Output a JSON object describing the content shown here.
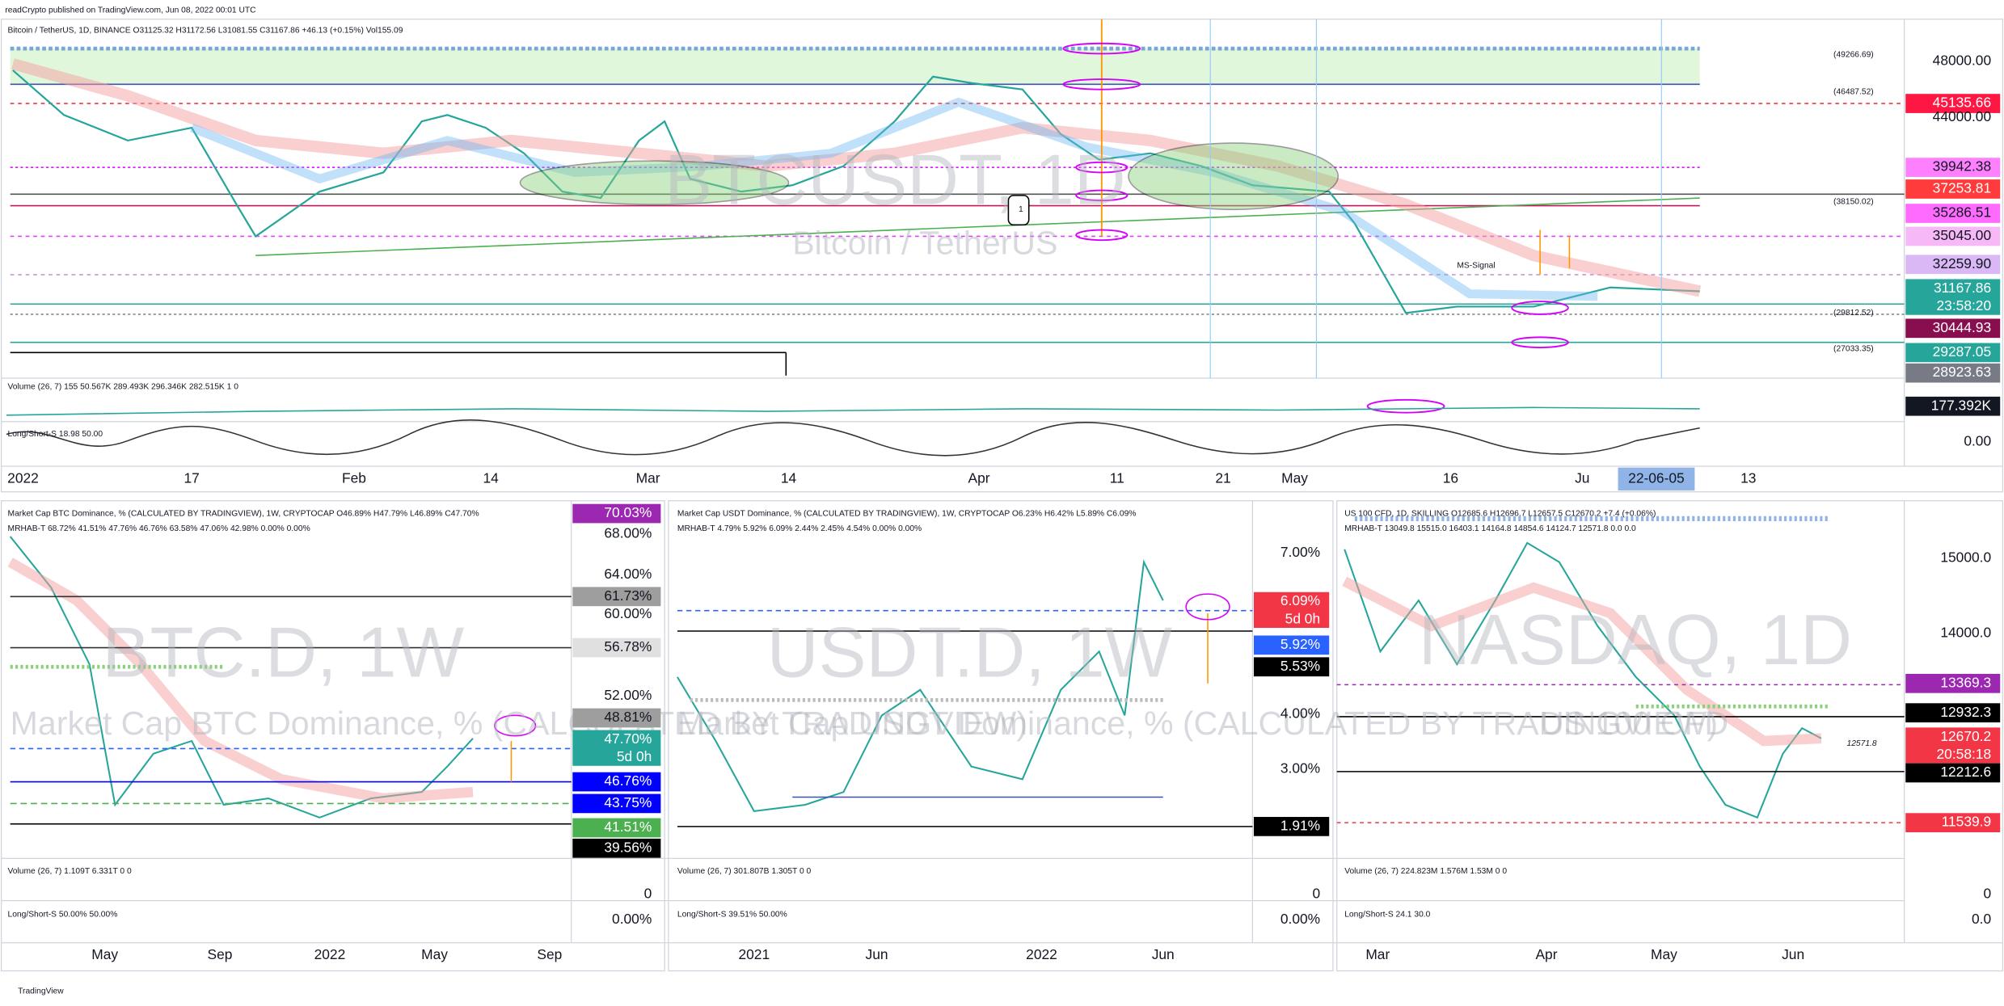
{
  "header": "readCrypto published on TradingView.com, Jun 08, 2022 00:01 UTC",
  "footer": "TradingView",
  "panels": [
    {
      "title": "Bitcoin / TetherUS, 1D, BINANCE O31125.32 H31172.56 L31081.55 C31167.86 +46.13 (+0.15%) Vol155.09",
      "legend": [
        "Volume (26, 7) 155 50.567K 289.493K 296.346K 282.515K 1 0",
        "Long/Short-S 18.98 50.00"
      ],
      "watermark": "BTCUSDT, 1D",
      "watermark_sub": "Bitcoin / TetherUS",
      "price_labels": [
        {
          "text": "48000.00"
        },
        {
          "text": "45135.66",
          "color": "#ff1744"
        },
        {
          "text": "44000.00"
        },
        {
          "text": "39942.38",
          "color": "#ff80ff"
        },
        {
          "text": "37253.81",
          "color": "#ff3b3b"
        },
        {
          "text": "35286.51",
          "color": "#ff6bff"
        },
        {
          "text": "35045.00",
          "color": "#f6b8f6"
        },
        {
          "text": "32259.90",
          "color": "#d9b8f5"
        },
        {
          "text": "31167.86",
          "sub": "23:58:20",
          "color": "#26a69a"
        },
        {
          "text": "30444.93",
          "color": "#880e4f"
        },
        {
          "text": "29287.05",
          "color": "#26a69a"
        },
        {
          "text": "28923.63",
          "color": "#787b86"
        },
        {
          "text": "177.392K",
          "color": "#131722"
        },
        {
          "text": "0.00"
        }
      ],
      "time_labels": [
        {
          "text": "2022"
        },
        {
          "text": "17"
        },
        {
          "text": "Feb"
        },
        {
          "text": "14"
        },
        {
          "text": "Mar"
        },
        {
          "text": "14"
        },
        {
          "text": "Apr"
        },
        {
          "text": "11"
        },
        {
          "text": "21"
        },
        {
          "text": "May"
        },
        {
          "text": "16"
        },
        {
          "text": "Ju"
        },
        {
          "text": "22-06-05",
          "color": "#90b4e8"
        },
        {
          "text": "13"
        }
      ],
      "annotations": [
        "MS-Signal",
        "(49266.69)",
        "(46487.52)",
        "(38150.02)",
        "(29812.52)",
        "(27033.35)",
        "1"
      ]
    },
    {
      "title": "Market Cap BTC Dominance, % (CALCULATED BY TRADINGVIEW), 1W, CRYPTOCAP O46.89% H47.79% L46.89% C47.70%",
      "legend": [
        "MRHAB-T 68.72% 41.51% 47.76% 46.76% 63.58% 47.06% 42.98% 0.00% 0.00%",
        "Volume (26, 7) 1.109T 6.331T 0 0",
        "Long/Short-S 50.00% 50.00%"
      ],
      "watermark": "BTC.D, 1W",
      "watermark_sub": "Market Cap BTC Dominance, % (CALCULATED BY TRADINGVIEW)",
      "price_labels": [
        {
          "text": "70.03%",
          "color": "#9c27b0"
        },
        {
          "text": "68.00%"
        },
        {
          "text": "64.00%"
        },
        {
          "text": "61.73%",
          "color": "#9e9e9e"
        },
        {
          "text": "60.00%"
        },
        {
          "text": "56.78%",
          "color": "#e0e0e0"
        },
        {
          "text": "52.00%"
        },
        {
          "text": "48.81%",
          "color": "#9e9e9e"
        },
        {
          "text": "47.70%",
          "sub": "5d 0h",
          "color": "#26a69a"
        },
        {
          "text": "46.76%",
          "color": "#0000ff"
        },
        {
          "text": "43.75%",
          "color": "#0000ff"
        },
        {
          "text": "41.51%",
          "color": "#4caf50"
        },
        {
          "text": "39.56%",
          "color": "#000000"
        },
        {
          "text": "0"
        },
        {
          "text": "0.00%"
        }
      ],
      "time_labels": [
        {
          "text": "May"
        },
        {
          "text": "Sep"
        },
        {
          "text": "2022"
        },
        {
          "text": "May"
        },
        {
          "text": "Sep"
        }
      ],
      "annotations": []
    },
    {
      "title": "Market Cap USDT Dominance, % (CALCULATED BY TRADINGVIEW), 1W, CRYPTOCAP O6.23% H6.42% L5.89% C6.09%",
      "legend": [
        "MRHAB-T 4.79% 5.92% 6.09% 2.44% 2.45% 4.54% 0.00% 0.00%",
        "Volume (26, 7) 301.807B 1.305T 0 0",
        "Long/Short-S 39.51% 50.00%"
      ],
      "watermark": "USDT.D, 1W",
      "watermark_sub": "Market Cap USDT Dominance, % (CALCULATED BY TRADINGVIEW)",
      "price_labels": [
        {
          "text": "7.00%"
        },
        {
          "text": "6.09%",
          "sub": "5d 0h",
          "color": "#f23645"
        },
        {
          "text": "5.92%",
          "color": "#2962ff"
        },
        {
          "text": "5.53%",
          "color": "#000000"
        },
        {
          "text": "4.00%"
        },
        {
          "text": "3.00%"
        },
        {
          "text": "1.91%",
          "color": "#000000"
        },
        {
          "text": "0"
        },
        {
          "text": "0.00%"
        }
      ],
      "time_labels": [
        {
          "text": "2021"
        },
        {
          "text": "Jun"
        },
        {
          "text": "2022"
        },
        {
          "text": "Jun"
        }
      ],
      "annotations": []
    },
    {
      "title": "US 100 CFD, 1D, SKILLING O12685.6 H12696.7 L12657.5 C12670.2 +7.4 (+0.06%)",
      "legend": [
        "MRHAB-T 13049.8 15515.0 16403.1 14164.8 14854.6 14124.7 12571.8 0.0 0.0",
        "Volume (26, 7) 224.823M 1.576M 1.53M 0 0",
        "Long/Short-S 24.1 30.0"
      ],
      "watermark": "NASDAQ, 1D",
      "watermark_sub": "US 100 CFD",
      "price_labels": [
        {
          "text": "15000.0"
        },
        {
          "text": "14000.0"
        },
        {
          "text": "13369.3",
          "color": "#9c27b0"
        },
        {
          "text": "12932.3",
          "color": "#000000"
        },
        {
          "text": "12670.2",
          "sub": "20:58:18",
          "color": "#f23645"
        },
        {
          "text": "12212.6",
          "color": "#000000"
        },
        {
          "text": "11539.9",
          "color": "#f23645"
        },
        {
          "text": "0"
        },
        {
          "text": "0.0"
        }
      ],
      "time_labels": [
        {
          "text": "Mar"
        },
        {
          "text": "Apr"
        },
        {
          "text": "May"
        },
        {
          "text": "Jun"
        }
      ],
      "annotations": [
        "12571.8"
      ]
    }
  ]
}
